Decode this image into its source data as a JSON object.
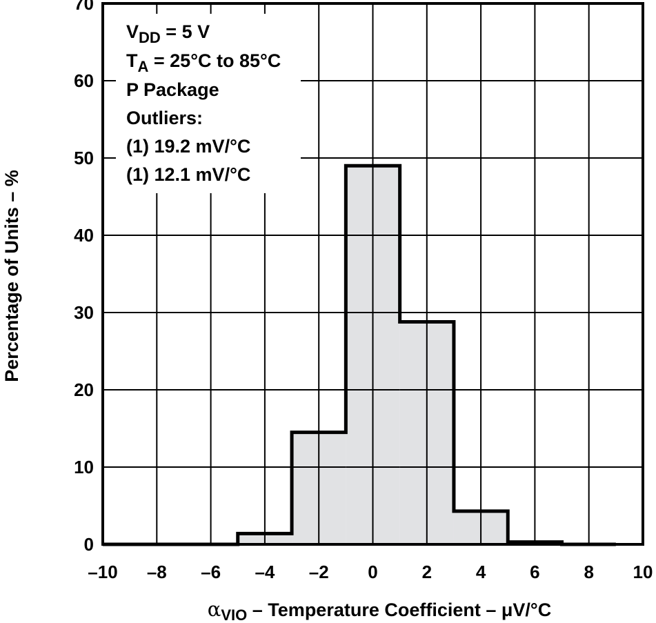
{
  "chart_data": {
    "type": "bar",
    "title": "",
    "xlabel": {
      "symbol": "α",
      "subscript": "VIO",
      "text": " – Temperature Coefficient – μV/°C"
    },
    "ylabel": "Percentage of Units – %",
    "xlim": [
      -10,
      10
    ],
    "ylim": [
      0,
      70
    ],
    "xticks": [
      "–10",
      "–8",
      "–6",
      "–4",
      "–2",
      "0",
      "2",
      "4",
      "6",
      "8",
      "10"
    ],
    "yticks": [
      "0",
      "10",
      "20",
      "30",
      "40",
      "50",
      "60",
      "70"
    ],
    "grid": true,
    "bins": [
      {
        "from": -11,
        "to": -9,
        "value": 0
      },
      {
        "from": -9,
        "to": -7,
        "value": 0
      },
      {
        "from": -7,
        "to": -5,
        "value": 0
      },
      {
        "from": -5,
        "to": -3,
        "value": 1.4
      },
      {
        "from": -3,
        "to": -1,
        "value": 14.5
      },
      {
        "from": -1,
        "to": 1,
        "value": 49
      },
      {
        "from": 1,
        "to": 3,
        "value": 28.8
      },
      {
        "from": 3,
        "to": 5,
        "value": 4.3
      },
      {
        "from": 5,
        "to": 7,
        "value": 0.3
      },
      {
        "from": 7,
        "to": 9,
        "value": 0
      }
    ],
    "annotations": {
      "vdd": {
        "symbol": "V",
        "subscript": "DD",
        "rest": " = 5 V"
      },
      "ta": {
        "symbol": "T",
        "subscript": "A",
        "rest": " = 25°C to 85°C"
      },
      "package": "P Package",
      "outliers_heading": "Outliers:",
      "outliers": [
        "(1) 19.2 mV/°C",
        "(1) 12.1 mV/°C"
      ]
    },
    "colors": {
      "fill": "#e1e2e4",
      "stroke": "#000000",
      "grid": "#000000"
    }
  }
}
